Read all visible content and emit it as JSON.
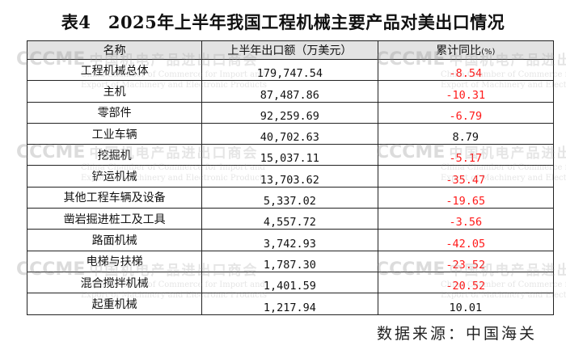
{
  "title": "表4　2025年上半年我国工程机械主要产品对美出口情况",
  "table": {
    "headers": [
      "名称",
      "上半年出口额（万美元）",
      "累计同比"
    ],
    "pct_unit": "(%)",
    "rows": [
      {
        "name": "工程机械总体",
        "value": "179,747.54",
        "yoy": "-8.54"
      },
      {
        "name": "主机",
        "value": "87,487.86",
        "yoy": "-10.31"
      },
      {
        "name": "零部件",
        "value": "92,259.69",
        "yoy": "-6.79"
      },
      {
        "name": "工业车辆",
        "value": "40,702.63",
        "yoy": "8.79"
      },
      {
        "name": "挖掘机",
        "value": "15,037.11",
        "yoy": "-5.17"
      },
      {
        "name": "铲运机械",
        "value": "13,703.62",
        "yoy": "-35.47"
      },
      {
        "name": "其他工程车辆及设备",
        "value": "5,337.02",
        "yoy": "-19.65"
      },
      {
        "name": "凿岩掘进桩工及工具",
        "value": "4,557.72",
        "yoy": "-3.56"
      },
      {
        "name": "路面机械",
        "value": "3,742.93",
        "yoy": "-42.05"
      },
      {
        "name": "电梯与扶梯",
        "value": "1,787.30",
        "yoy": "-23.52"
      },
      {
        "name": "混合搅拌机械",
        "value": "1,401.59",
        "yoy": "-20.52"
      },
      {
        "name": "起重机械",
        "value": "1,217.94",
        "yoy": "10.01"
      }
    ]
  },
  "source": "数据来源：中国海关",
  "watermark": {
    "logo": "CCCME",
    "cn": "中国机电产品进出口商会",
    "en1": "China Chamber of Commerce for Import and",
    "en2": "Export of Machinery and Electronic Products"
  },
  "colors": {
    "negative": "#ff1a1a",
    "header_bg": "#e3e3e3"
  }
}
